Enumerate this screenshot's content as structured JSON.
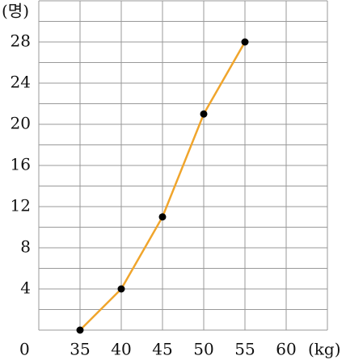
{
  "chart_data": {
    "type": "line",
    "y_unit": "(명)",
    "x_unit": "(kg)",
    "x": [
      35,
      40,
      45,
      50,
      55
    ],
    "series": [
      {
        "color": "#f0a52c",
        "values": [
          0,
          4,
          11,
          21,
          28
        ]
      }
    ],
    "xlim": [
      30,
      65
    ],
    "xticks": [
      35,
      40,
      45,
      50,
      55,
      60
    ],
    "ylim": [
      0,
      32
    ],
    "yticks": [
      0,
      4,
      8,
      12,
      16,
      20,
      24,
      28
    ],
    "minor_yticks": [
      2,
      6,
      10,
      14,
      18,
      22,
      26,
      30
    ],
    "grid": true
  }
}
